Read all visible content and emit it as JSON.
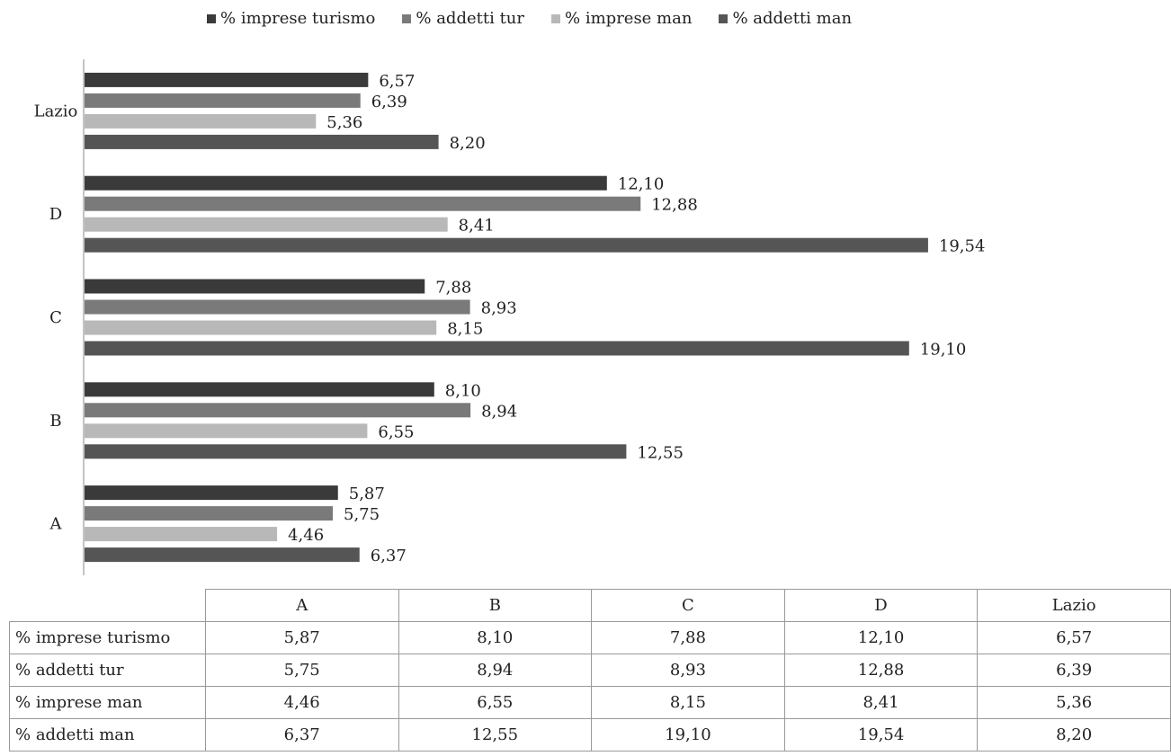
{
  "chart_data": {
    "type": "bar",
    "orientation": "horizontal",
    "categories": [
      "A",
      "B",
      "C",
      "D",
      "Lazio"
    ],
    "series": [
      {
        "name": "% imprese turismo",
        "values": [
          5.87,
          8.1,
          7.88,
          12.1,
          6.57
        ],
        "labels": [
          "5,87",
          "8,10",
          "7,88",
          "12,10",
          "6,57"
        ],
        "color": "#3a3a3a"
      },
      {
        "name": "% addetti tur",
        "values": [
          5.75,
          8.94,
          8.93,
          12.88,
          6.39
        ],
        "labels": [
          "5,75",
          "8,94",
          "8,93",
          "12,88",
          "6,39"
        ],
        "color": "#7a7a7a"
      },
      {
        "name": "% imprese man",
        "values": [
          4.46,
          6.55,
          8.15,
          8.41,
          5.36
        ],
        "labels": [
          "4,46",
          "6,55",
          "8,15",
          "8,41",
          "5,36"
        ],
        "color": "#b8b8b8"
      },
      {
        "name": "% addetti man",
        "values": [
          6.37,
          12.55,
          19.1,
          19.54,
          8.2
        ],
        "labels": [
          "6,37",
          "12,55",
          "19,10",
          "19,54",
          "8,20"
        ],
        "color": "#555555"
      }
    ],
    "legend_position": "top",
    "grid": false
  },
  "table": {
    "columns": [
      "A",
      "B",
      "C",
      "D",
      "Lazio"
    ],
    "rows": [
      {
        "label": "% imprese turismo",
        "cells": [
          "5,87",
          "8,10",
          "7,88",
          "12,10",
          "6,57"
        ]
      },
      {
        "label": "% addetti tur",
        "cells": [
          "5,75",
          "8,94",
          "8,93",
          "12,88",
          "6,39"
        ]
      },
      {
        "label": "% imprese man",
        "cells": [
          "4,46",
          "6,55",
          "8,15",
          "8,41",
          "5,36"
        ]
      },
      {
        "label": "% addetti man",
        "cells": [
          "6,37",
          "12,55",
          "19,10",
          "19,54",
          "8,20"
        ]
      }
    ]
  }
}
